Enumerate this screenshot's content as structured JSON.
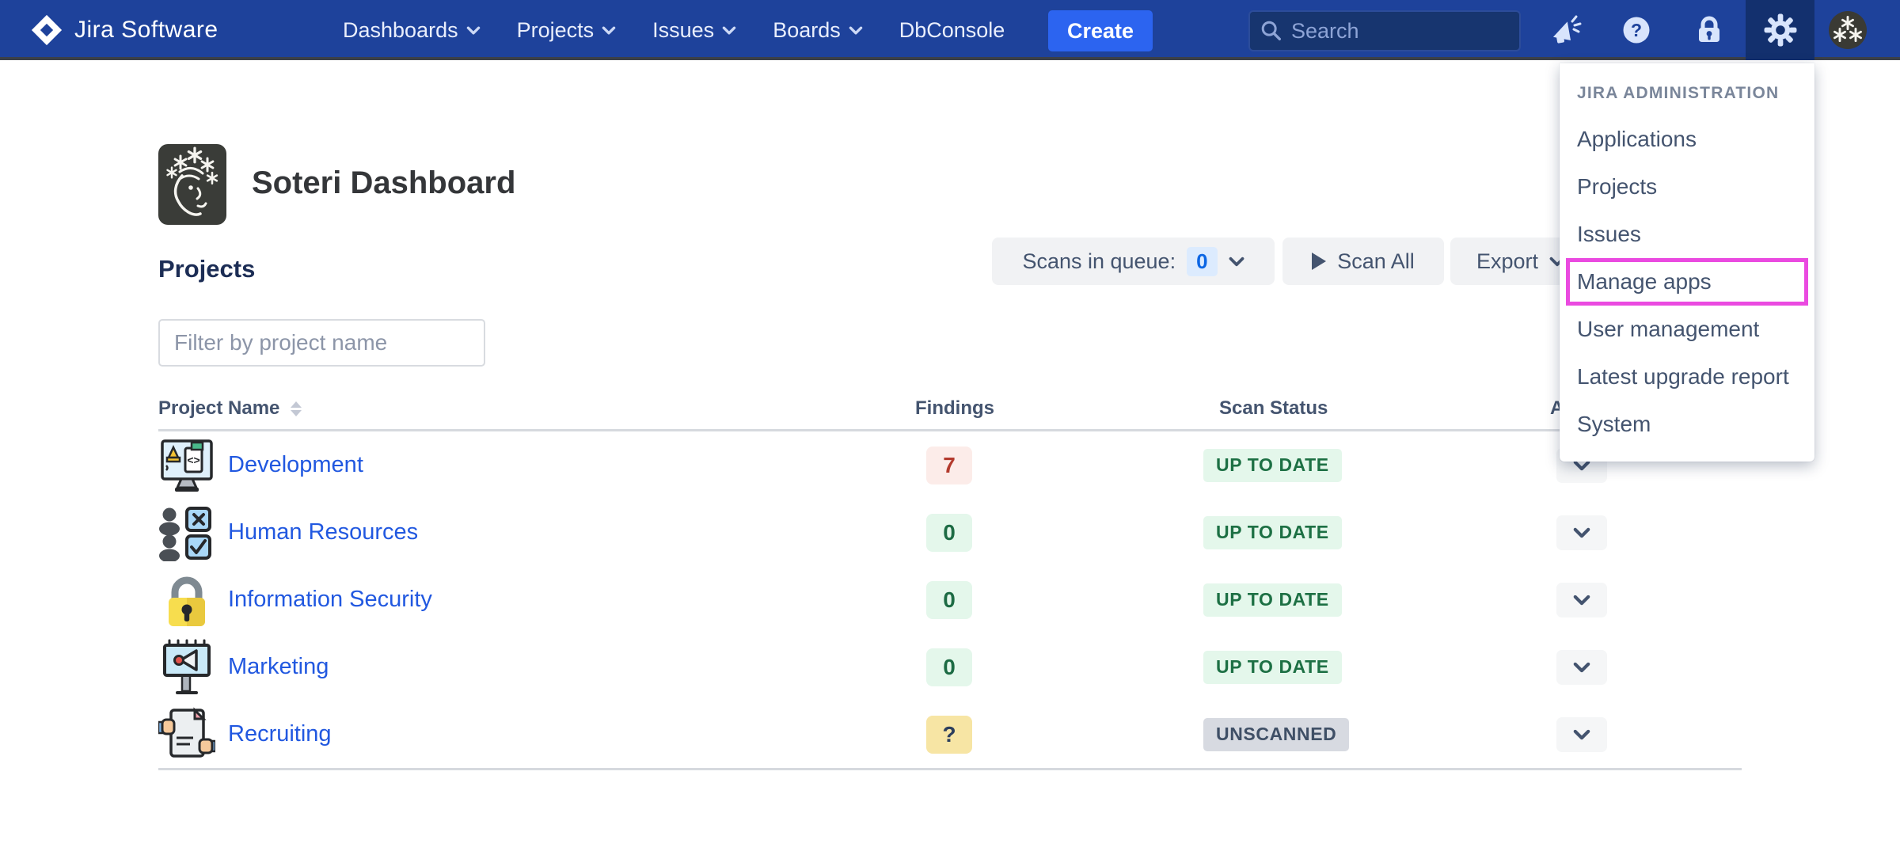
{
  "navbar": {
    "logo_text": "Jira Software",
    "menus": [
      {
        "label": "Dashboards",
        "chevron": true
      },
      {
        "label": "Projects",
        "chevron": true
      },
      {
        "label": "Issues",
        "chevron": true
      },
      {
        "label": "Boards",
        "chevron": true
      },
      {
        "label": "DbConsole",
        "chevron": false
      }
    ],
    "create_label": "Create",
    "search_placeholder": "Search",
    "icons": [
      "search-icon",
      "announcement-megaphone-icon",
      "help-icon",
      "lock-icon",
      "gear-icon",
      "user-avatar"
    ]
  },
  "admin_menu": {
    "header": "JIRA ADMINISTRATION",
    "items": [
      {
        "label": "Applications",
        "highlighted": false
      },
      {
        "label": "Projects",
        "highlighted": false
      },
      {
        "label": "Issues",
        "highlighted": false
      },
      {
        "label": "Manage apps",
        "highlighted": true
      },
      {
        "label": "User management",
        "highlighted": false
      },
      {
        "label": "Latest upgrade report",
        "highlighted": false
      },
      {
        "label": "System",
        "highlighted": false
      }
    ],
    "highlight_color": "#ea4ae0"
  },
  "page": {
    "title": "Soteri Dashboard",
    "section_heading": "Projects",
    "filter_placeholder": "Filter by project name",
    "toolbar": {
      "scans_in_queue_label": "Scans in queue:",
      "scans_in_queue_count": "0",
      "scan_all_label": "Scan All",
      "export_label": "Export"
    }
  },
  "table": {
    "columns": [
      "Project Name",
      "Findings",
      "Scan Status",
      "Actions"
    ],
    "rows": [
      {
        "name": "Development",
        "icon": "development-monitor-icon",
        "findings": "7",
        "findings_style": "red",
        "status": "UP TO DATE",
        "status_style": "green"
      },
      {
        "name": "Human Resources",
        "icon": "hr-people-checklist-icon",
        "findings": "0",
        "findings_style": "green",
        "status": "UP TO DATE",
        "status_style": "green"
      },
      {
        "name": "Information Security",
        "icon": "padlock-icon",
        "findings": "0",
        "findings_style": "green",
        "status": "UP TO DATE",
        "status_style": "green"
      },
      {
        "name": "Marketing",
        "icon": "billboard-megaphone-icon",
        "findings": "0",
        "findings_style": "green",
        "status": "UP TO DATE",
        "status_style": "green"
      },
      {
        "name": "Recruiting",
        "icon": "resume-hands-icon",
        "findings": "?",
        "findings_style": "yellow",
        "status": "UNSCANNED",
        "status_style": "gray"
      }
    ]
  },
  "colors": {
    "navbar_blue": "#1e429b",
    "create_blue": "#2c64f0",
    "link_blue": "#2158e0",
    "highlight_magenta": "#ea4ae0",
    "findings_red_bg": "#fcece9",
    "findings_red_text": "#b33a2d",
    "findings_green_bg": "#e4f7eb",
    "findings_green_text": "#1d6b44",
    "findings_yellow_bg": "#f7e5a4",
    "status_green_bg": "#e4f7eb",
    "status_green_text": "#1d7044",
    "status_gray_bg": "#d7dae1",
    "status_gray_text": "#3f4f66"
  }
}
